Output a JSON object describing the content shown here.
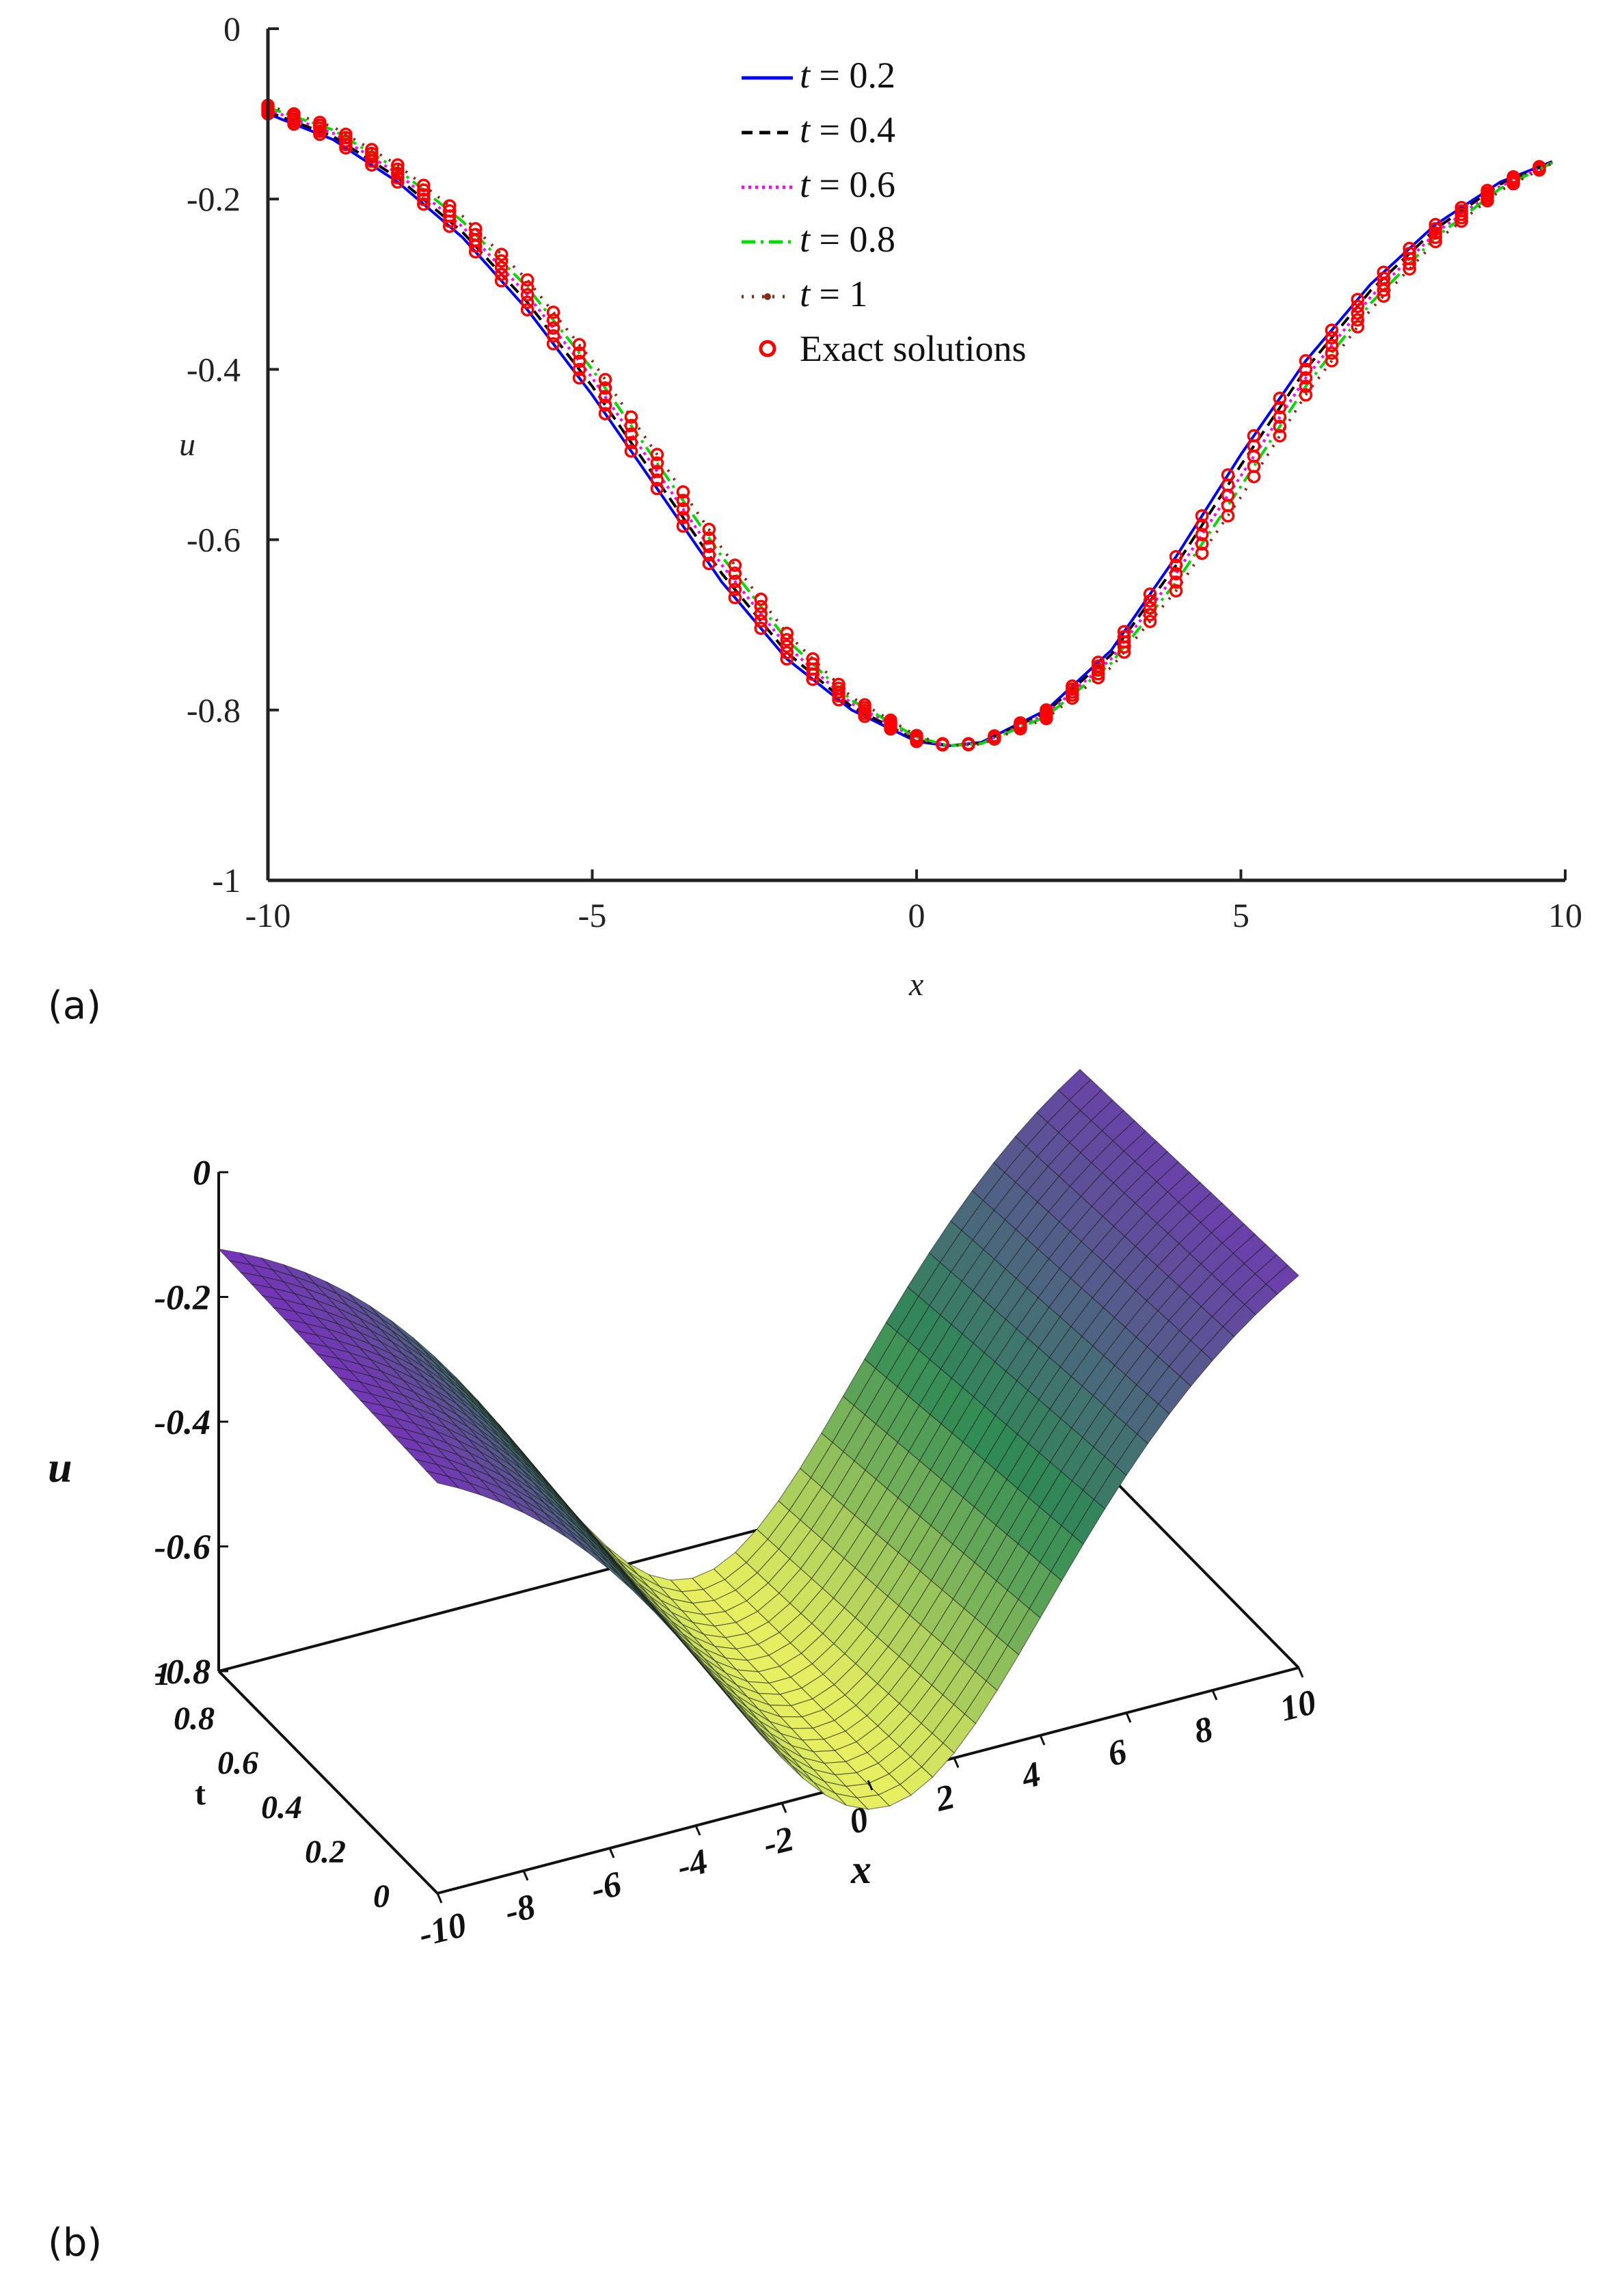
{
  "panel_labels": {
    "a": "(a)",
    "b": "(b)"
  },
  "colors": {
    "series": [
      "#0000ff",
      "#000000",
      "#ff00ff",
      "#00dd00",
      "#8b2a14"
    ],
    "exact": "#ff0000",
    "axis": "#222222",
    "surface_low": "#e8f060",
    "surface_mid": "#2f8a55",
    "surface_high": "#7a2ec0"
  },
  "chart_data": [
    {
      "type": "line",
      "xlabel": "x",
      "ylabel": "u",
      "xlim": [
        -10,
        10
      ],
      "ylim": [
        -1,
        0
      ],
      "xticks": [
        "-10",
        "-5",
        "0",
        "5",
        "10"
      ],
      "yticks": [
        "0",
        "-0.2",
        "-0.4",
        "-0.6",
        "-0.8",
        "-1"
      ],
      "legend_position": "top-center",
      "legend": {
        "series": [
          {
            "name": "t = 0.2",
            "t_sym": "t",
            "rest": " = 0.2",
            "style": "solid"
          },
          {
            "name": "t = 0.4",
            "t_sym": "t",
            "rest": " = 0.4",
            "style": "dashed"
          },
          {
            "name": "t = 0.6",
            "t_sym": "t",
            "rest": " = 0.6",
            "style": "dotted"
          },
          {
            "name": "t = 0.8",
            "t_sym": "t",
            "rest": " = 0.8",
            "style": "dashdot"
          },
          {
            "name": "t = 1",
            "t_sym": "t",
            "rest": " = 1",
            "style": "dotmarker"
          }
        ],
        "exact": "Exact solutions"
      },
      "series_points": {
        "x": [
          -10,
          -9,
          -8,
          -7,
          -6,
          -5,
          -4,
          -3,
          -2,
          -1,
          0,
          0.5,
          1,
          2,
          3,
          4,
          5,
          6,
          7,
          8,
          9,
          10
        ],
        "u_t02": [
          -0.1,
          -0.13,
          -0.18,
          -0.245,
          -0.33,
          -0.43,
          -0.54,
          -0.65,
          -0.74,
          -0.8,
          -0.837,
          -0.842,
          -0.838,
          -0.8,
          -0.73,
          -0.62,
          -0.5,
          -0.39,
          -0.3,
          -0.23,
          -0.18,
          -0.15
        ],
        "u_t1": [
          -0.09,
          -0.115,
          -0.16,
          -0.22,
          -0.295,
          -0.39,
          -0.5,
          -0.61,
          -0.71,
          -0.785,
          -0.83,
          -0.842,
          -0.84,
          -0.81,
          -0.75,
          -0.66,
          -0.55,
          -0.43,
          -0.33,
          -0.25,
          -0.19,
          -0.15
        ]
      },
      "t_values": [
        0.2,
        0.4,
        0.6,
        0.8,
        1
      ]
    },
    {
      "type": "surface",
      "xlabel": "x",
      "ylabel": "t",
      "zlabel": "u",
      "xlim": [
        -10,
        10
      ],
      "ylim": [
        0,
        1
      ],
      "zlim": [
        -0.8,
        0
      ],
      "xticks": [
        "-10",
        "-8",
        "-6",
        "-4",
        "-2",
        "0",
        "2",
        "4",
        "6",
        "8",
        "10"
      ],
      "yticks": [
        "0",
        "0.2",
        "0.4",
        "0.6",
        "0.8",
        "1"
      ],
      "zticks": [
        "0",
        "-0.2",
        "-0.4",
        "-0.6",
        "-0.8"
      ]
    }
  ]
}
